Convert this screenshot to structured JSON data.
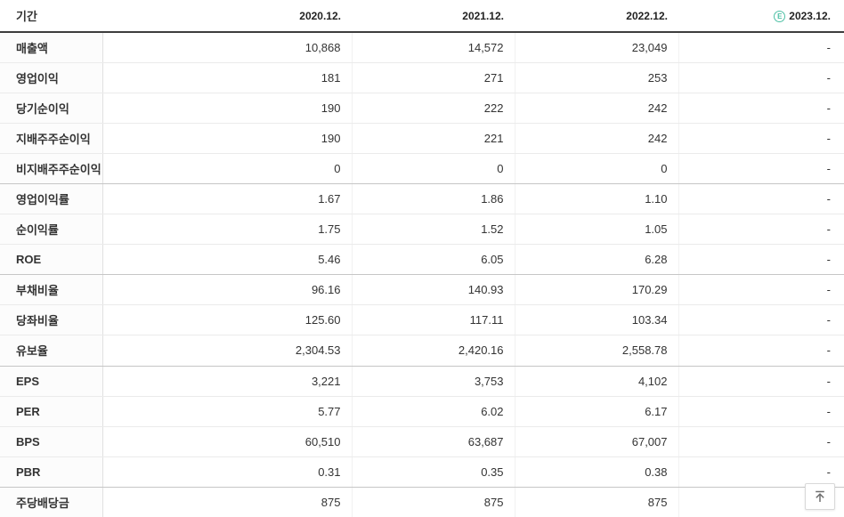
{
  "header": {
    "period_label": "기간",
    "estimate_badge": "E",
    "columns": [
      {
        "label": "2020.12."
      },
      {
        "label": "2021.12."
      },
      {
        "label": "2022.12."
      },
      {
        "label": "2023.12.",
        "estimated": true
      }
    ]
  },
  "table": {
    "rows": [
      {
        "label": "매출액",
        "values": [
          "10,868",
          "14,572",
          "23,049",
          "-"
        ],
        "group_end": false
      },
      {
        "label": "영업이익",
        "values": [
          "181",
          "271",
          "253",
          "-"
        ],
        "group_end": false
      },
      {
        "label": "당기순이익",
        "values": [
          "190",
          "222",
          "242",
          "-"
        ],
        "group_end": false
      },
      {
        "label": "지배주주순이익",
        "values": [
          "190",
          "221",
          "242",
          "-"
        ],
        "group_end": false
      },
      {
        "label": "비지배주주순이익",
        "values": [
          "0",
          "0",
          "0",
          "-"
        ],
        "group_end": true
      },
      {
        "label": "영업이익률",
        "values": [
          "1.67",
          "1.86",
          "1.10",
          "-"
        ],
        "group_end": false
      },
      {
        "label": "순이익률",
        "values": [
          "1.75",
          "1.52",
          "1.05",
          "-"
        ],
        "group_end": false
      },
      {
        "label": "ROE",
        "values": [
          "5.46",
          "6.05",
          "6.28",
          "-"
        ],
        "group_end": true
      },
      {
        "label": "부채비율",
        "values": [
          "96.16",
          "140.93",
          "170.29",
          "-"
        ],
        "group_end": false
      },
      {
        "label": "당좌비율",
        "values": [
          "125.60",
          "117.11",
          "103.34",
          "-"
        ],
        "group_end": false
      },
      {
        "label": "유보율",
        "values": [
          "2,304.53",
          "2,420.16",
          "2,558.78",
          "-"
        ],
        "group_end": true
      },
      {
        "label": "EPS",
        "values": [
          "3,221",
          "3,753",
          "4,102",
          "-"
        ],
        "group_end": false
      },
      {
        "label": "PER",
        "values": [
          "5.77",
          "6.02",
          "6.17",
          "-"
        ],
        "group_end": false
      },
      {
        "label": "BPS",
        "values": [
          "60,510",
          "63,687",
          "67,007",
          "-"
        ],
        "group_end": false
      },
      {
        "label": "PBR",
        "values": [
          "0.31",
          "0.35",
          "0.38",
          "-"
        ],
        "group_end": true
      },
      {
        "label": "주당배당금",
        "values": [
          "875",
          "875",
          "875",
          "-"
        ],
        "group_end": false
      }
    ]
  },
  "colors": {
    "estimate_accent": "#4ec0a5",
    "header_border": "#3d3d3d",
    "text": "#333333",
    "row_border": "#ebebeb",
    "group_border": "#c6c6c6"
  },
  "icons": {
    "estimate": "E-circle-icon",
    "scroll_top": "arrow-up-to-bar-icon"
  }
}
